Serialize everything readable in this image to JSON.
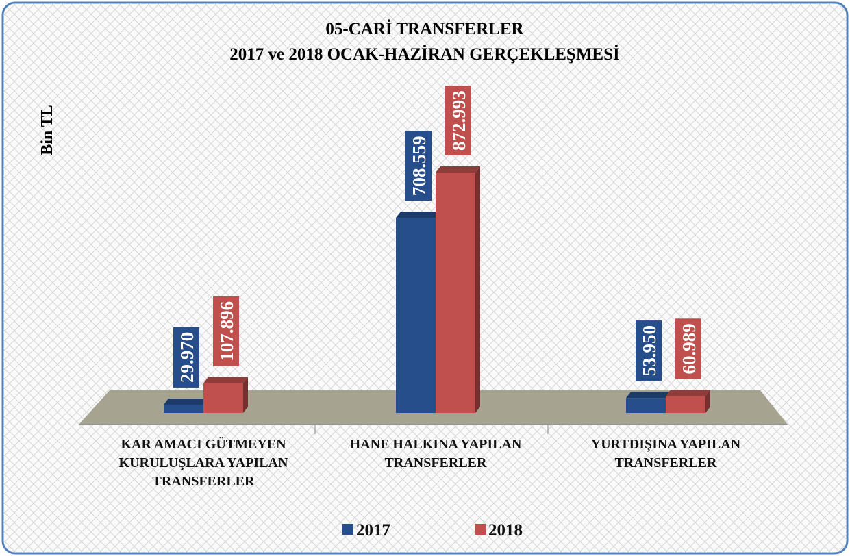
{
  "chart_data": {
    "type": "bar3d",
    "title": "05-CARİ TRANSFERLER",
    "subtitle": "2017 ve 2018 OCAK-HAZİRAN GERÇEKLEŞMESİ",
    "y_label": "Bin TL",
    "categories": [
      "KAR AMACI GÜTMEYEN KURULUŞLARA YAPILAN TRANSFERLER",
      "HANE HALKINA YAPILAN TRANSFERLER",
      "YURTDIŞINA YAPILAN TRANSFERLER"
    ],
    "series": [
      {
        "name": "2017",
        "color": "#254e8a",
        "values": [
          29970,
          708559,
          53950
        ],
        "value_labels": [
          "29.970",
          "708.559",
          "53.950"
        ]
      },
      {
        "name": "2018",
        "color": "#c0504d",
        "values": [
          107896,
          872993,
          60989
        ],
        "value_labels": [
          "107.896",
          "872.993",
          "60.989"
        ]
      }
    ],
    "legend": "bottom"
  }
}
